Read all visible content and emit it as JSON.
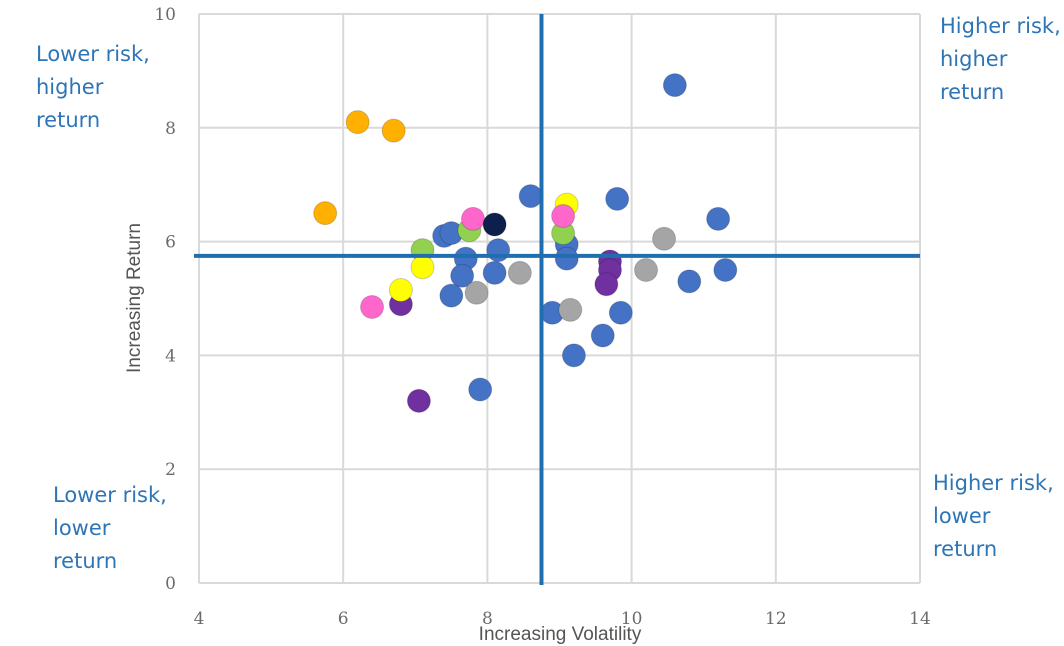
{
  "quadrant_labels": {
    "top_left": "Lower risk,\nhigher\nreturn",
    "top_right": "Higher risk,\nhigher\nreturn",
    "bottom_left": "Lower risk,\nlower\nreturn",
    "bottom_right": "Higher risk,\nlower\nreturn"
  },
  "chart_data": {
    "type": "scatter",
    "xlabel": "Increasing Volatility",
    "ylabel": "Increasing Return",
    "xlim": [
      4,
      14
    ],
    "ylim": [
      0,
      10
    ],
    "xticks": [
      4,
      6,
      8,
      10,
      12,
      14
    ],
    "yticks": [
      0,
      2,
      4,
      6,
      8,
      10
    ],
    "grid": true,
    "reference_lines": {
      "x": 8.75,
      "y": 5.75
    },
    "colors": {
      "blue": "#4472c4",
      "orange": "#ffb000",
      "gray": "#a5a5a5",
      "purple": "#7030a0",
      "green": "#92d050",
      "yellow": "#ffff00",
      "pink": "#ff66cc",
      "navy": "#0d1f4a",
      "reference_line": "#1f6fb0"
    },
    "series": [
      {
        "color": "blue",
        "points": [
          [
            10.6,
            8.75
          ],
          [
            8.6,
            6.8
          ],
          [
            9.8,
            6.75
          ],
          [
            11.2,
            6.4
          ],
          [
            7.4,
            6.1
          ],
          [
            7.5,
            6.15
          ],
          [
            8.15,
            5.85
          ],
          [
            9.1,
            5.95
          ],
          [
            9.1,
            5.7
          ],
          [
            7.7,
            5.7
          ],
          [
            7.65,
            5.4
          ],
          [
            8.1,
            5.45
          ],
          [
            10.8,
            5.3
          ],
          [
            11.3,
            5.5
          ],
          [
            7.5,
            5.05
          ],
          [
            8.9,
            4.75
          ],
          [
            9.85,
            4.75
          ],
          [
            9.6,
            4.35
          ],
          [
            9.2,
            4.0
          ],
          [
            7.9,
            3.4
          ]
        ]
      },
      {
        "color": "orange",
        "points": [
          [
            6.2,
            8.1
          ],
          [
            6.7,
            7.95
          ],
          [
            5.75,
            6.5
          ]
        ]
      },
      {
        "color": "gray",
        "points": [
          [
            10.45,
            6.05
          ],
          [
            10.2,
            5.5
          ],
          [
            8.45,
            5.45
          ],
          [
            7.85,
            5.1
          ],
          [
            9.15,
            4.8
          ]
        ]
      },
      {
        "color": "purple",
        "points": [
          [
            9.7,
            5.65
          ],
          [
            9.7,
            5.5
          ],
          [
            9.65,
            5.25
          ],
          [
            6.8,
            4.9
          ],
          [
            7.05,
            3.2
          ]
        ]
      },
      {
        "color": "green",
        "points": [
          [
            7.1,
            5.85
          ],
          [
            7.75,
            6.2
          ],
          [
            9.05,
            6.15
          ]
        ]
      },
      {
        "color": "yellow",
        "points": [
          [
            9.1,
            6.65
          ],
          [
            7.1,
            5.55
          ],
          [
            6.8,
            5.15
          ]
        ]
      },
      {
        "color": "pink",
        "points": [
          [
            7.8,
            6.4
          ],
          [
            9.05,
            6.45
          ],
          [
            6.4,
            4.85
          ]
        ]
      },
      {
        "color": "navy",
        "points": [
          [
            8.1,
            6.3
          ]
        ]
      }
    ]
  }
}
